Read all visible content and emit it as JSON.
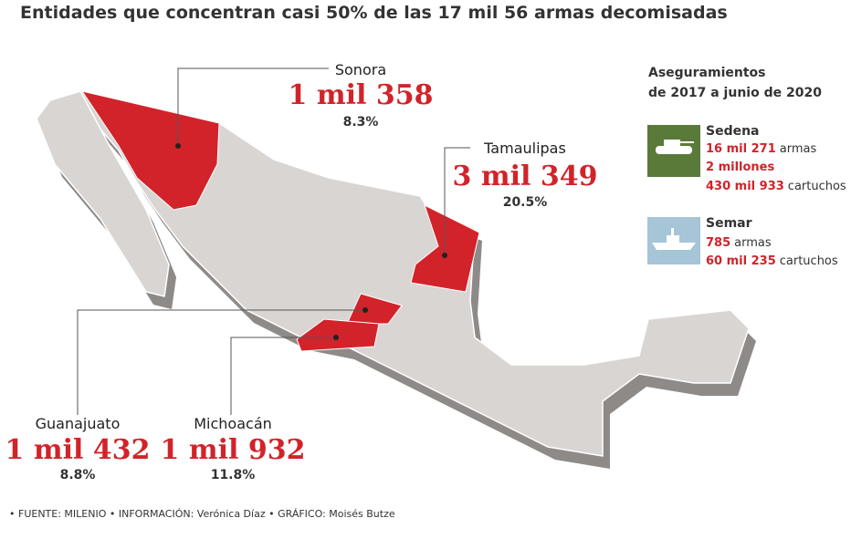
{
  "title": "Entidades que concentran casi 50% de las 17 mil 56 armas decomisadas",
  "states": [
    {
      "name": "Sonora",
      "value": "1 mil 358",
      "percent": "8.3%"
    },
    {
      "name": "Tamaulipas",
      "value": "3 mil 349",
      "percent": "20.5%"
    },
    {
      "name": "Guanajuato",
      "value": "1 mil 432",
      "percent": "8.8%"
    },
    {
      "name": "Michoacán",
      "value": "1 mil 932",
      "percent": "11.8%"
    }
  ],
  "sidebar": {
    "title_lines": [
      "Aseguramientos",
      "de 2017 a junio de 2020"
    ],
    "groups": [
      {
        "name": "Sedena",
        "lines": [
          {
            "amount": "16 mil 271",
            "unit": "armas"
          },
          {
            "amount": "2 millones"
          },
          {
            "amount": "430 mil 933",
            "unit": "cartuchos"
          }
        ]
      },
      {
        "name": "Semar",
        "lines": [
          {
            "amount": "785",
            "unit": "armas"
          },
          {
            "amount": "60 mil 235",
            "unit": "cartuchos"
          }
        ]
      }
    ]
  },
  "footer": [
    "FUENTE: MILENIO",
    "INFORMACIÓN: Verónica Díaz",
    "GRÁFICO: Moisés Butze"
  ]
}
